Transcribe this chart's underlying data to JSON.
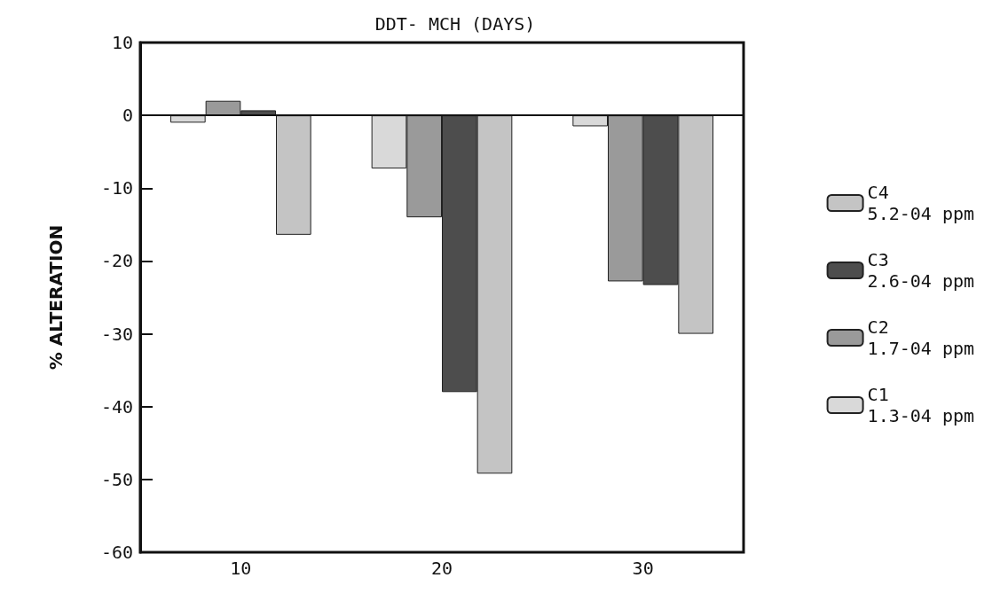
{
  "chart_data": {
    "type": "bar",
    "title": "DDT- MCH (DAYS)",
    "ylabel": "% ALTERATION",
    "categories": [
      "10",
      "20",
      "30"
    ],
    "series": [
      {
        "name": "C1\n1.3-04 ppm",
        "color": "#d9d9d9",
        "values": [
          -1,
          -7.3,
          -1.5
        ]
      },
      {
        "name": "C2\n1.7-04 ppm",
        "color": "#9a9a9a",
        "values": [
          2,
          -14,
          -22.8
        ]
      },
      {
        "name": "C3\n2.6-04 ppm",
        "color": "#4d4d4d",
        "values": [
          0.7,
          -38,
          -23.3
        ]
      },
      {
        "name": "C4\n5.2-04 ppm",
        "color": "#c4c4c4",
        "values": [
          -16.4,
          -49.2,
          -30
        ]
      }
    ],
    "ylim": [
      -60,
      10
    ],
    "yticks": [
      -60,
      -50,
      -40,
      -30,
      -20,
      -10,
      0,
      10
    ],
    "grid": false,
    "legend": "right",
    "ref_lines": [
      {
        "axis": "y",
        "value": 0,
        "color": "#111111",
        "line_style": "solid"
      }
    ]
  }
}
